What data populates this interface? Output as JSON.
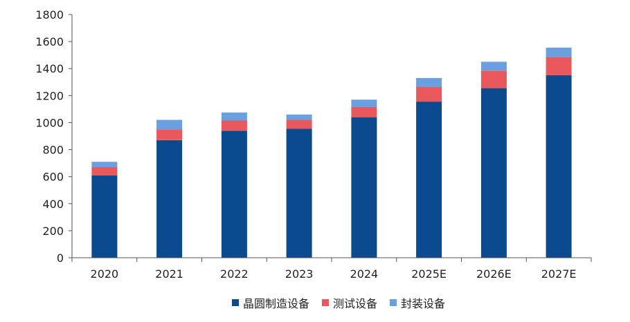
{
  "chart_data": {
    "type": "bar",
    "stacked": true,
    "categories": [
      "2020",
      "2021",
      "2022",
      "2023",
      "2024",
      "2025E",
      "2026E",
      "2027E"
    ],
    "series": [
      {
        "name": "晶圆制造设备",
        "color": "#0b4a8f",
        "values": [
          610,
          870,
          940,
          955,
          1040,
          1155,
          1255,
          1350
        ]
      },
      {
        "name": "测试设备",
        "color": "#e8585c",
        "values": [
          60,
          80,
          75,
          65,
          75,
          110,
          130,
          135
        ]
      },
      {
        "name": "封装设备",
        "color": "#6a9fe0",
        "values": [
          40,
          70,
          60,
          40,
          55,
          65,
          65,
          70
        ]
      }
    ],
    "ylim": [
      0,
      1800
    ],
    "yticks": [
      0,
      200,
      400,
      600,
      800,
      1000,
      1200,
      1400,
      1600,
      1800
    ],
    "legend_position": "bottom",
    "grid": false
  }
}
